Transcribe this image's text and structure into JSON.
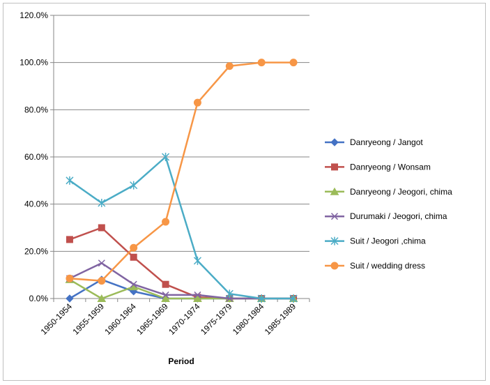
{
  "chart_data": {
    "type": "line",
    "title": "",
    "xlabel": "Period",
    "ylabel": "",
    "categories": [
      "1950-1954",
      "1955-1959",
      "1960-1964",
      "1965-1969",
      "1970-1974",
      "1975-1979",
      "1980-1984",
      "1985-1989"
    ],
    "ylim": [
      0,
      120
    ],
    "yticks": [
      "0.0%",
      "20.0%",
      "40.0%",
      "60.0%",
      "80.0%",
      "100.0%",
      "120.0%"
    ],
    "grid": true,
    "legend_position": "right",
    "series": [
      {
        "name": "Danryeong / Jangot",
        "marker": "diamond",
        "color": "#4472C4",
        "values": [
          0,
          8,
          3,
          0,
          0,
          0,
          0,
          0
        ]
      },
      {
        "name": "Danryeong / Wonsam",
        "marker": "square",
        "color": "#C0504D",
        "values": [
          25,
          30,
          17.5,
          6,
          0.5,
          0,
          0,
          0
        ]
      },
      {
        "name": "Danryeong / Jeogori, chima",
        "marker": "triangle",
        "color": "#9BBB59",
        "values": [
          8,
          0,
          5,
          0,
          0,
          0,
          0,
          0
        ]
      },
      {
        "name": "Durumaki / Jeogori, chima",
        "marker": "x",
        "color": "#8064A2",
        "values": [
          8.5,
          15,
          6,
          1.5,
          1.5,
          0,
          0,
          0
        ]
      },
      {
        "name": "Suit / Jeogori ,chima",
        "marker": "star",
        "color": "#4BACC6",
        "values": [
          50,
          40.5,
          48,
          60,
          16,
          2,
          0,
          0
        ]
      },
      {
        "name": "Suit / wedding dress",
        "marker": "circle",
        "color": "#F79646",
        "values": [
          8.5,
          7.5,
          21.5,
          32.5,
          83,
          98.5,
          100,
          100
        ]
      }
    ]
  }
}
